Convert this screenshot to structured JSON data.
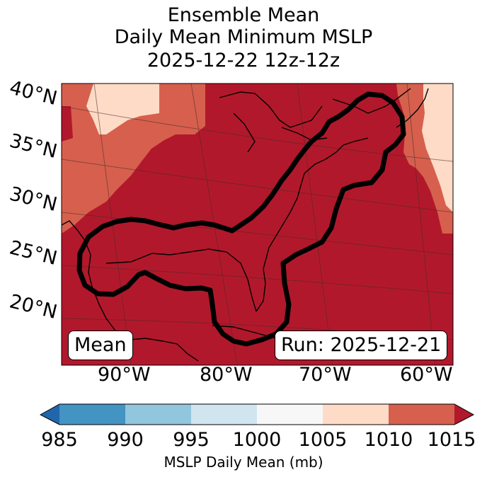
{
  "title": {
    "line1": "Ensemble Mean",
    "line2": "Daily Mean Minimum MSLP",
    "line3": "2025-12-22 12z-12z"
  },
  "map": {
    "lat_labels": [
      "40°N",
      "35°N",
      "30°N",
      "25°N",
      "20°N"
    ],
    "lon_labels": [
      "90°W",
      "80°W",
      "70°W",
      "60°W"
    ],
    "mean_box": "Mean",
    "run_box": "Run: 2025-12-21",
    "colors": {
      "c1010_1015": "#b2182b",
      "c1005_1010": "#d6604d",
      "c1000_1005": "#fddbc7"
    }
  },
  "colorbar": {
    "ticks": [
      "985",
      "990",
      "995",
      "1000",
      "1005",
      "1010",
      "1015"
    ],
    "label": "MSLP Daily Mean (mb)",
    "colors": [
      "#2166ac",
      "#4393c3",
      "#92c5de",
      "#d1e5f0",
      "#f7f7f7",
      "#fddbc7",
      "#d6604d",
      "#b2182b"
    ]
  }
}
